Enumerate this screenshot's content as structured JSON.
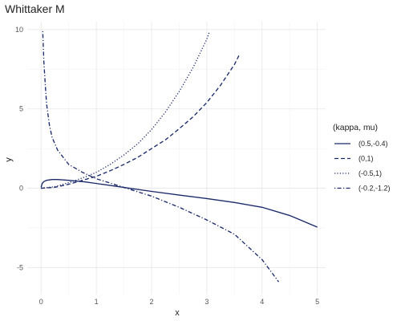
{
  "chart_data": {
    "type": "line",
    "title": "Whittaker M",
    "xlabel": "x",
    "ylabel": "y",
    "xlim": [
      -0.25,
      5.15
    ],
    "ylim": [
      -6.7,
      10.5
    ],
    "x_ticks": [
      0,
      1,
      2,
      3,
      4,
      5
    ],
    "y_ticks": [
      -5,
      0,
      5,
      10
    ],
    "grid": true,
    "legend": {
      "title": "(kappa, mu)",
      "placement": "right"
    },
    "series": [
      {
        "name": "(0.5,-0.4)",
        "color": "#1b2a6b",
        "dash": "solid",
        "points": [
          [
            0.0,
            0.05
          ],
          [
            0.02,
            0.3
          ],
          [
            0.05,
            0.42
          ],
          [
            0.1,
            0.5
          ],
          [
            0.2,
            0.55
          ],
          [
            0.3,
            0.55
          ],
          [
            0.5,
            0.5
          ],
          [
            0.8,
            0.4
          ],
          [
            1.0,
            0.3
          ],
          [
            1.5,
            0.05
          ],
          [
            2.0,
            -0.2
          ],
          [
            2.5,
            -0.43
          ],
          [
            3.0,
            -0.65
          ],
          [
            3.5,
            -0.9
          ],
          [
            4.0,
            -1.2
          ],
          [
            4.5,
            -1.72
          ],
          [
            5.0,
            -2.45
          ]
        ]
      },
      {
        "name": "(0,1)",
        "color": "#1b2a6b",
        "dash": "dashed",
        "points": [
          [
            0.0,
            0.0
          ],
          [
            0.25,
            0.06
          ],
          [
            0.5,
            0.25
          ],
          [
            0.75,
            0.5
          ],
          [
            1.0,
            0.75
          ],
          [
            1.25,
            1.1
          ],
          [
            1.5,
            1.5
          ],
          [
            1.75,
            1.95
          ],
          [
            2.0,
            2.5
          ],
          [
            2.25,
            3.05
          ],
          [
            2.5,
            3.75
          ],
          [
            2.75,
            4.5
          ],
          [
            3.0,
            5.4
          ],
          [
            3.25,
            6.5
          ],
          [
            3.5,
            7.8
          ],
          [
            3.6,
            8.5
          ]
        ]
      },
      {
        "name": "(-0.5,1)",
        "color": "#1b2a6b",
        "dash": "dotted",
        "points": [
          [
            0.0,
            0.0
          ],
          [
            0.25,
            0.1
          ],
          [
            0.5,
            0.35
          ],
          [
            0.75,
            0.65
          ],
          [
            1.0,
            1.0
          ],
          [
            1.25,
            1.5
          ],
          [
            1.5,
            2.1
          ],
          [
            1.75,
            2.8
          ],
          [
            2.0,
            3.7
          ],
          [
            2.25,
            4.8
          ],
          [
            2.5,
            6.1
          ],
          [
            2.75,
            7.6
          ],
          [
            3.0,
            9.4
          ],
          [
            3.05,
            9.9
          ]
        ]
      },
      {
        "name": "(-0.2,-1.2)",
        "color": "#1b2a6b",
        "dash": "dotdash",
        "points": [
          [
            0.03,
            9.9
          ],
          [
            0.05,
            8.0
          ],
          [
            0.08,
            6.3
          ],
          [
            0.1,
            5.3
          ],
          [
            0.15,
            4.0
          ],
          [
            0.2,
            3.2
          ],
          [
            0.3,
            2.4
          ],
          [
            0.5,
            1.5
          ],
          [
            0.75,
            1.0
          ],
          [
            1.0,
            0.6
          ],
          [
            1.5,
            0.05
          ],
          [
            2.0,
            -0.5
          ],
          [
            2.5,
            -1.2
          ],
          [
            3.0,
            -2.0
          ],
          [
            3.5,
            -2.9
          ],
          [
            4.0,
            -4.5
          ],
          [
            4.3,
            -5.9
          ]
        ]
      }
    ]
  }
}
